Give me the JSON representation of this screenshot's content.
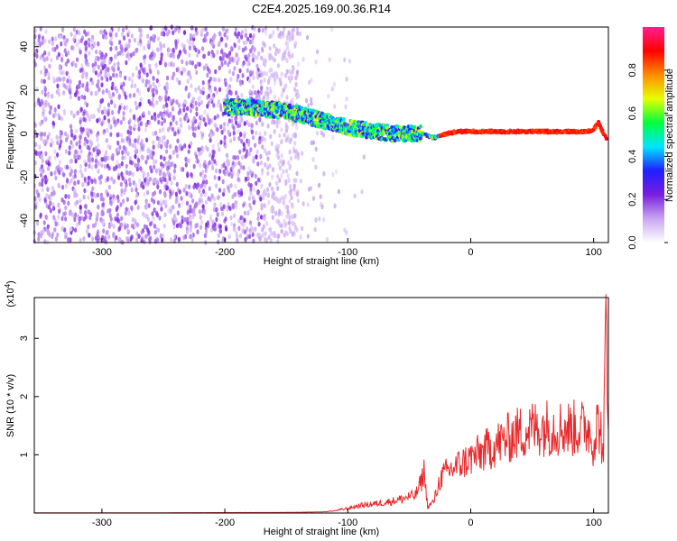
{
  "title": "C2E4.2025.169.00.36.R14",
  "chart_data": [
    {
      "type": "heatmap",
      "xlabel": "Height of straight line (km)",
      "ylabel": "Frequency (Hz)",
      "xlim": [
        -355,
        112
      ],
      "ylim": [
        -50,
        49
      ],
      "x_ticks": [
        -300,
        -200,
        -100,
        0,
        100
      ],
      "y_ticks": [
        -40,
        -20,
        0,
        20,
        40
      ],
      "colorbar": {
        "label": "Normalized spectral amplitude",
        "range": [
          0.0,
          1.0
        ],
        "ticks": [
          "0.0",
          "0.2",
          "0.4",
          "0.6",
          "0.8"
        ],
        "colormap": [
          "#ffffff",
          "#c9a6f0",
          "#7a1ee0",
          "#1f1fff",
          "#00e5ff",
          "#00ff3c",
          "#e6ff00",
          "#ff8c00",
          "#ff0000",
          "#ff1f8f"
        ]
      },
      "ridge": {
        "x": [
          -200,
          -180,
          -160,
          -140,
          -120,
          -100,
          -80,
          -60,
          -40,
          -30,
          -20,
          -10,
          0,
          20,
          40,
          60,
          80,
          95,
          100,
          104,
          108,
          112
        ],
        "y": [
          12,
          12,
          11,
          9,
          6,
          3,
          1,
          0,
          0,
          -2,
          0,
          1,
          1,
          1,
          1,
          1,
          1,
          1,
          2,
          5,
          0,
          -4
        ]
      },
      "noise_region": {
        "x_min": -355,
        "x_max": -140
      }
    },
    {
      "type": "line",
      "xlabel": "Height of straight line (km)",
      "ylabel": "SNR (10 * v/v)",
      "multiplier": "(x10",
      "multiplier_exp": "4",
      "multiplier_close": ")",
      "xlim": [
        -355,
        112
      ],
      "ylim": [
        0,
        3.7
      ],
      "x_ticks": [
        -300,
        -200,
        -100,
        0,
        100
      ],
      "y_ticks": [
        1,
        2,
        3
      ],
      "color": "#e8292b",
      "series": [
        {
          "x": [
            -355,
            -300,
            -250,
            -200,
            -150,
            -120,
            -110,
            -100,
            -90,
            -80,
            -70,
            -60,
            -50,
            -45,
            -40,
            -38,
            -35,
            -30,
            -25,
            -20,
            -10,
            0,
            10,
            20,
            30,
            40,
            50,
            60,
            70,
            80,
            90,
            95,
            100,
            103,
            106,
            108,
            110,
            112
          ],
          "values": [
            0.005,
            0.005,
            0.005,
            0.008,
            0.01,
            0.02,
            0.04,
            0.08,
            0.13,
            0.15,
            0.18,
            0.22,
            0.28,
            0.3,
            0.55,
            0.72,
            0.1,
            0.2,
            0.58,
            0.7,
            0.82,
            0.94,
            1.05,
            1.17,
            1.28,
            1.38,
            1.45,
            1.48,
            1.47,
            1.45,
            1.45,
            1.5,
            1.2,
            1.55,
            1.4,
            0.8,
            3.6,
            1.4
          ]
        }
      ]
    }
  ]
}
